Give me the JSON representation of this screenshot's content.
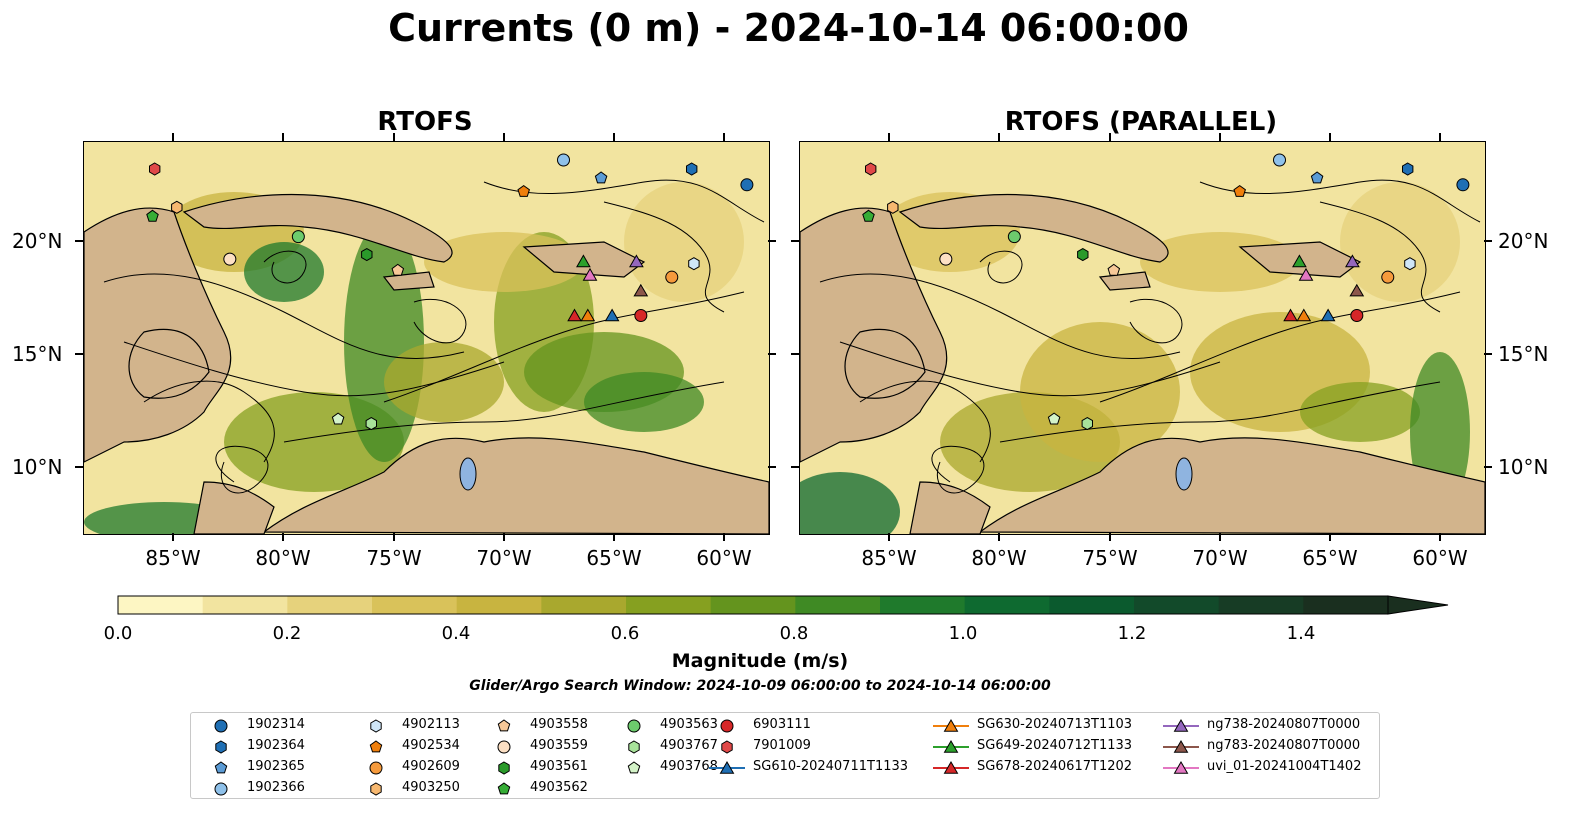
{
  "figure": {
    "title": "Currents (0 m) - 2024-10-14 06:00:00",
    "panels": [
      {
        "title": "RTOFS"
      },
      {
        "title": "RTOFS (PARALLEL)"
      }
    ],
    "lat_labels": [
      "20°N",
      "15°N",
      "10°N"
    ],
    "lon_labels": [
      "85°W",
      "80°W",
      "75°W",
      "70°W",
      "65°W",
      "60°W"
    ],
    "colorbar": {
      "label": "Magnitude (m/s)",
      "ticks": [
        "0.0",
        "0.2",
        "0.4",
        "0.6",
        "0.8",
        "1.0",
        "1.2",
        "1.4"
      ],
      "range": [
        0.0,
        1.6
      ],
      "extend": "max",
      "colors": [
        "#fdf6c3",
        "#f2e4a0",
        "#e6d27c",
        "#d9c25a",
        "#c8b440",
        "#a9a82e",
        "#86a020",
        "#64941e",
        "#3f8a24",
        "#1f7a2c",
        "#0e6a30",
        "#0b5a2e",
        "#124a2a",
        "#173c25",
        "#1a2f1f"
      ]
    },
    "search_window": "Glider/Argo Search Window: 2024-10-09 06:00:00 to 2024-10-14 06:00:00",
    "colors": {
      "land": "#d2b48c",
      "lakes": "#8fb4e0"
    }
  },
  "legend": {
    "columns": [
      [
        {
          "label": "1902314",
          "shape": "circle",
          "color": "#1f6fb4"
        },
        {
          "label": "1902364",
          "shape": "hexagon",
          "color": "#1f6fb4"
        },
        {
          "label": "1902365",
          "shape": "pentagon",
          "color": "#5b9bd5"
        },
        {
          "label": "1902366",
          "shape": "circle",
          "color": "#8fc1ea"
        }
      ],
      [
        {
          "label": "4902113",
          "shape": "hexagon",
          "color": "#cfe6f7"
        },
        {
          "label": "4902534",
          "shape": "pentagon",
          "color": "#f07f0c"
        },
        {
          "label": "4902609",
          "shape": "circle",
          "color": "#f59a3c"
        },
        {
          "label": "4903250",
          "shape": "hexagon",
          "color": "#f7b870"
        }
      ],
      [
        {
          "label": "4903558",
          "shape": "pentagon",
          "color": "#f7c898"
        },
        {
          "label": "4903559",
          "shape": "circle",
          "color": "#fce0c4"
        },
        {
          "label": "4903561",
          "shape": "hexagon",
          "color": "#2a9a2a"
        },
        {
          "label": "4903562",
          "shape": "pentagon",
          "color": "#36ad36"
        }
      ],
      [
        {
          "label": "4903563",
          "shape": "circle",
          "color": "#6dcb6d"
        },
        {
          "label": "4903767",
          "shape": "hexagon",
          "color": "#a8e29a"
        },
        {
          "label": "4903768",
          "shape": "pentagon",
          "color": "#d4f3c8"
        }
      ],
      [
        {
          "label": "6903111",
          "shape": "circle",
          "color": "#d62728"
        },
        {
          "label": "7901009",
          "shape": "hexagon",
          "color": "#e04848"
        },
        {
          "label": "SG610-20240711T1133",
          "shape": "triangle",
          "color": "#1f6fb4",
          "line": true
        }
      ],
      [
        {
          "label": "SG630-20240713T1103",
          "shape": "triangle",
          "color": "#f07f0c",
          "line": true
        },
        {
          "label": "SG649-20240712T1133",
          "shape": "triangle",
          "color": "#2ca02c",
          "line": true
        },
        {
          "label": "SG678-20240617T1202",
          "shape": "triangle",
          "color": "#d62728",
          "line": true
        }
      ],
      [
        {
          "label": "ng738-20240807T0000",
          "shape": "triangle",
          "color": "#9467bd",
          "line": true
        },
        {
          "label": "ng783-20240807T0000",
          "shape": "triangle",
          "color": "#8c564b",
          "line": true
        },
        {
          "label": "uvi_01-20241004T1402",
          "shape": "triangle",
          "color": "#e377c2",
          "line": true
        }
      ]
    ]
  }
}
